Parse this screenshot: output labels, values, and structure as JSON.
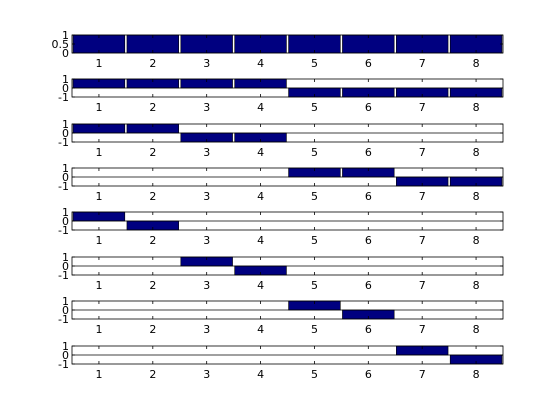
{
  "figure": {
    "background": "#ffffff",
    "bar_color": "#000080",
    "axis_color": "#000000"
  },
  "chart_data": [
    {
      "type": "bar",
      "categories": [
        "1",
        "2",
        "3",
        "4",
        "5",
        "6",
        "7",
        "8"
      ],
      "values": [
        1,
        1,
        1,
        1,
        1,
        1,
        1,
        1
      ],
      "ylim": [
        0,
        1
      ],
      "yticks": [
        "0",
        "0.5",
        "1"
      ],
      "xlim": [
        0.5,
        8.5
      ],
      "grid": false
    },
    {
      "type": "bar",
      "categories": [
        "1",
        "2",
        "3",
        "4",
        "5",
        "6",
        "7",
        "8"
      ],
      "values": [
        1,
        1,
        1,
        1,
        -1,
        -1,
        -1,
        -1
      ],
      "ylim": [
        -1,
        1
      ],
      "yticks": [
        "-1",
        "0",
        "1"
      ],
      "xlim": [
        0.5,
        8.5
      ],
      "grid": false
    },
    {
      "type": "bar",
      "categories": [
        "1",
        "2",
        "3",
        "4",
        "5",
        "6",
        "7",
        "8"
      ],
      "values": [
        1,
        1,
        -1,
        -1,
        0,
        0,
        0,
        0
      ],
      "ylim": [
        -1,
        1
      ],
      "yticks": [
        "-1",
        "0",
        "1"
      ],
      "xlim": [
        0.5,
        8.5
      ],
      "grid": false
    },
    {
      "type": "bar",
      "categories": [
        "1",
        "2",
        "3",
        "4",
        "5",
        "6",
        "7",
        "8"
      ],
      "values": [
        0,
        0,
        0,
        0,
        1,
        1,
        -1,
        -1
      ],
      "ylim": [
        -1,
        1
      ],
      "yticks": [
        "-1",
        "0",
        "1"
      ],
      "xlim": [
        0.5,
        8.5
      ],
      "grid": false
    },
    {
      "type": "bar",
      "categories": [
        "1",
        "2",
        "3",
        "4",
        "5",
        "6",
        "7",
        "8"
      ],
      "values": [
        1,
        -1,
        0,
        0,
        0,
        0,
        0,
        0
      ],
      "ylim": [
        -1,
        1
      ],
      "yticks": [
        "-1",
        "0",
        "1"
      ],
      "xlim": [
        0.5,
        8.5
      ],
      "grid": false
    },
    {
      "type": "bar",
      "categories": [
        "1",
        "2",
        "3",
        "4",
        "5",
        "6",
        "7",
        "8"
      ],
      "values": [
        0,
        0,
        1,
        -1,
        0,
        0,
        0,
        0
      ],
      "ylim": [
        -1,
        1
      ],
      "yticks": [
        "-1",
        "0",
        "1"
      ],
      "xlim": [
        0.5,
        8.5
      ],
      "grid": false
    },
    {
      "type": "bar",
      "categories": [
        "1",
        "2",
        "3",
        "4",
        "5",
        "6",
        "7",
        "8"
      ],
      "values": [
        0,
        0,
        0,
        0,
        1,
        -1,
        0,
        0
      ],
      "ylim": [
        -1,
        1
      ],
      "yticks": [
        "-1",
        "0",
        "1"
      ],
      "xlim": [
        0.5,
        8.5
      ],
      "grid": false
    },
    {
      "type": "bar",
      "categories": [
        "1",
        "2",
        "3",
        "4",
        "5",
        "6",
        "7",
        "8"
      ],
      "values": [
        0,
        0,
        0,
        0,
        0,
        0,
        1,
        -1
      ],
      "ylim": [
        -1,
        1
      ],
      "yticks": [
        "-1",
        "0",
        "1"
      ],
      "xlim": [
        0.5,
        8.5
      ],
      "grid": false
    }
  ]
}
